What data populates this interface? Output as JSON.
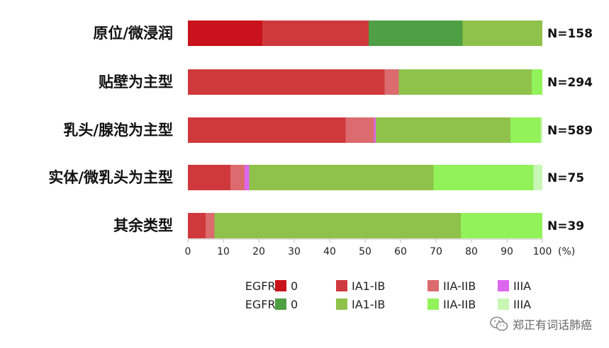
{
  "chart_data": {
    "type": "bar",
    "orientation": "horizontal",
    "stacked": true,
    "x_unit": "(%)",
    "xlim": [
      0,
      100
    ],
    "xticks": [
      "0",
      "10",
      "20",
      "30",
      "40",
      "50",
      "60",
      "70",
      "80",
      "90",
      "100"
    ],
    "categories": [
      "原位/微浸润",
      "贴壁为主型",
      "乳头/腺泡为主型",
      "实体/微乳头为主型",
      "其余类型"
    ],
    "n_labels": [
      "N=158",
      "N=294",
      "N=589",
      "N=75",
      "N=39"
    ],
    "series": [
      {
        "name": "0",
        "group": "EGFR+",
        "color": "#c9121b",
        "values": [
          21,
          0,
          0,
          0,
          0
        ]
      },
      {
        "name": "IA1-IB",
        "group": "EGFR+",
        "color": "#d0393c",
        "values": [
          30,
          55.5,
          44.5,
          12,
          5
        ]
      },
      {
        "name": "IIA-IIB",
        "group": "EGFR+",
        "color": "#db6b6e",
        "values": [
          0,
          4,
          8,
          4,
          2.5
        ]
      },
      {
        "name": "IIIA",
        "group": "EGFR+",
        "color": "#dd66ee",
        "values": [
          0,
          0,
          0.5,
          1.3,
          0
        ]
      },
      {
        "name": "0",
        "group": "EGFR−",
        "color": "#4f9f45",
        "values": [
          26.5,
          0,
          0,
          0,
          0
        ]
      },
      {
        "name": "IA1-IB",
        "group": "EGFR−",
        "color": "#8fc24a",
        "values": [
          22.5,
          37.5,
          38,
          52,
          69.5
        ]
      },
      {
        "name": "IIA-IIB",
        "group": "EGFR−",
        "color": "#92f25a",
        "values": [
          0,
          3,
          8.5,
          28.2,
          23
        ]
      },
      {
        "name": "IIIA",
        "group": "EGFR−",
        "color": "#c8f7b5",
        "values": [
          0,
          0,
          0.5,
          2.5,
          0
        ]
      }
    ],
    "legend": {
      "rows": [
        "EGFR+",
        "EGFR−"
      ],
      "labels": [
        "0",
        "IA1-IB",
        "IIA-IIB",
        "IIIA"
      ],
      "placement": "bottom"
    }
  },
  "watermark": {
    "text": "郑正有词话肺癌",
    "icon": "wechat-icon"
  }
}
